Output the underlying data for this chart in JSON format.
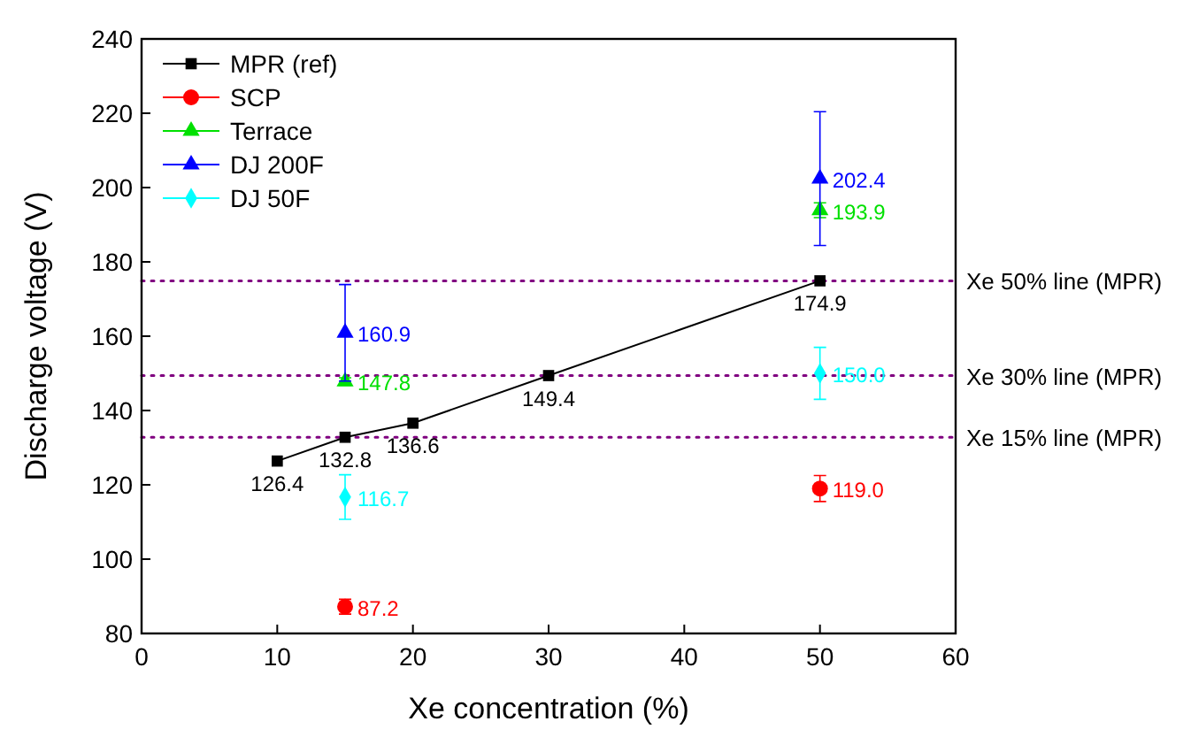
{
  "chart_data": {
    "type": "scatter",
    "xlabel": "Xe concentration (%)",
    "ylabel": "Discharge voltage (V)",
    "xlim": [
      0,
      60
    ],
    "ylim": [
      80,
      240
    ],
    "xticks": [
      0,
      10,
      20,
      30,
      40,
      50,
      60
    ],
    "yticks": [
      80,
      100,
      120,
      140,
      160,
      180,
      200,
      220,
      240
    ],
    "legend": "top left",
    "grid": false,
    "series": [
      {
        "name": "MPR (ref)",
        "type": "line",
        "marker": "square",
        "color": "#000000",
        "x": [
          10,
          15,
          20,
          30,
          50
        ],
        "values": [
          126.4,
          132.8,
          136.6,
          149.4,
          174.9
        ],
        "value_labels": [
          "126.4",
          "132.8",
          "136.6",
          "149.4",
          "174.9"
        ]
      },
      {
        "name": "SCP",
        "marker": "circle",
        "color": "#ff0000",
        "x": [
          15,
          50
        ],
        "values": [
          87.2,
          119.0
        ],
        "errors": [
          2,
          3.5
        ],
        "value_labels": [
          "87.2",
          "119.0"
        ]
      },
      {
        "name": "Terrace",
        "marker": "triangle",
        "color": "#00e000",
        "x": [
          15,
          50
        ],
        "values": [
          147.8,
          193.9
        ],
        "errors": [
          1,
          2
        ],
        "value_labels": [
          "147.8",
          "193.9"
        ]
      },
      {
        "name": "DJ 200F",
        "marker": "triangle",
        "color": "#0000ff",
        "x": [
          15,
          50
        ],
        "values": [
          160.9,
          202.4
        ],
        "errors": [
          13,
          18
        ],
        "value_labels": [
          "160.9",
          "202.4"
        ]
      },
      {
        "name": "DJ 50F",
        "marker": "diamond",
        "color": "#00ffff",
        "x": [
          15,
          50
        ],
        "values": [
          116.7,
          150.0
        ],
        "errors": [
          6,
          7
        ],
        "value_labels": [
          "116.7",
          "150.0"
        ]
      }
    ],
    "ref_lines": [
      {
        "axis": "y",
        "value": 174.9,
        "label": "Xe 50% line (MPR)",
        "color": "#800080",
        "line_style": "dotted"
      },
      {
        "axis": "y",
        "value": 149.4,
        "label": "Xe 30% line (MPR)",
        "color": "#800080",
        "line_style": "dotted"
      },
      {
        "axis": "y",
        "value": 132.8,
        "label": "Xe 15% line (MPR)",
        "color": "#800080",
        "line_style": "dotted"
      }
    ]
  }
}
